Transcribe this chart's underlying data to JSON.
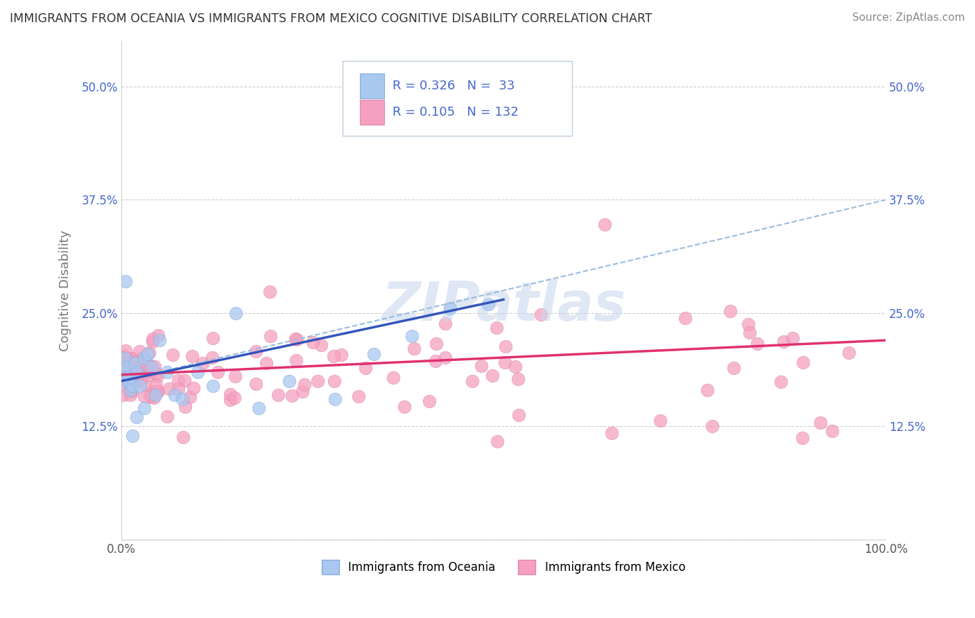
{
  "title": "IMMIGRANTS FROM OCEANIA VS IMMIGRANTS FROM MEXICO COGNITIVE DISABILITY CORRELATION CHART",
  "source": "Source: ZipAtlas.com",
  "ylabel": "Cognitive Disability",
  "background_color": "#ffffff",
  "grid_color": "#cccccc",
  "oceania_color": "#a8c8f0",
  "oceania_edge": "#88aadd",
  "oceania_line_color": "#3355bb",
  "oceania_dash_color": "#99bbdd",
  "mexico_color": "#f5a0c0",
  "mexico_edge": "#dd88aa",
  "mexico_line_color": "#e03070",
  "legend_text_color": "#4466cc",
  "ytick_color": "#4466cc",
  "xtick_color": "#555555",
  "watermark_color": "#ccd8ee",
  "title_color": "#333333",
  "source_color": "#888888",
  "ylabel_color": "#777777",
  "legend_box_edge": "#bbccdd",
  "R_oceania": 0.326,
  "N_oceania": 33,
  "R_mexico": 0.105,
  "N_mexico": 132,
  "xlim": [
    0,
    100
  ],
  "ylim_min": 0,
  "ylim_max": 55,
  "yticks": [
    0,
    12.5,
    25.0,
    37.5,
    50.0
  ],
  "ytick_labels_left": [
    "",
    "12.5%",
    "25.0%",
    "37.5%",
    "50.0%"
  ],
  "ytick_labels_right": [
    "",
    "12.5%",
    "25.0%",
    "37.5%",
    "50.0%"
  ],
  "xticks": [
    0,
    100
  ],
  "xtick_labels": [
    "0.0%",
    "100.0%"
  ],
  "oceania_label": "Immigrants from Oceania",
  "mexico_label": "Immigrants from Mexico",
  "blue_line_start_y": 17.5,
  "blue_line_end_x": 50,
  "blue_line_end_y": 26.5,
  "dash_line_start_y": 17.5,
  "dash_line_end_x": 100,
  "dash_line_end_y": 37.5,
  "pink_line_start_y": 18.2,
  "pink_line_end_y": 22.0
}
